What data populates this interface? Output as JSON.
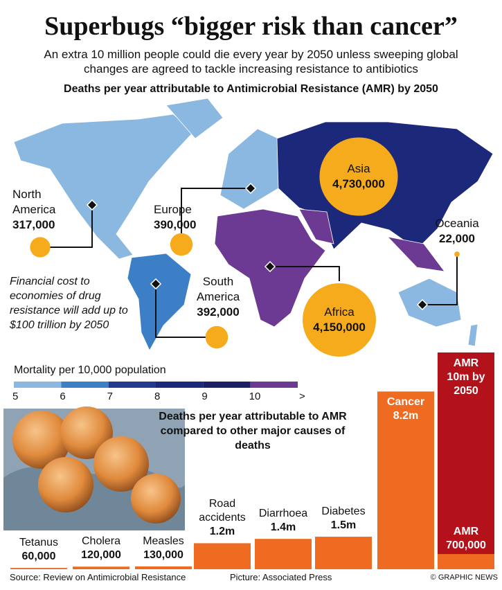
{
  "title": "Superbugs “bigger risk than cancer”",
  "subtitle": "An extra 10 million people could die every year by 2050 unless sweeping global changes are agreed to tackle increasing resistance to antibiotics",
  "map": {
    "title": "Deaths per year attributable to Antimicrobial Resistance (AMR) by 2050",
    "marker_color": "#f6ab1c",
    "regions": [
      {
        "name": "North America",
        "value": 317000,
        "value_label": "317,000",
        "color": "#8ab8e0"
      },
      {
        "name": "Europe",
        "value": 390000,
        "value_label": "390,000",
        "color": "#8ab8e0"
      },
      {
        "name": "Asia",
        "value": 4730000,
        "value_label": "4,730,000",
        "color": "#1c2879"
      },
      {
        "name": "Oceania",
        "value": 22000,
        "value_label": "22,000",
        "color": "#8ab8e0"
      },
      {
        "name": "South America",
        "value": 392000,
        "value_label": "392,000",
        "color": "#3d7fc6"
      },
      {
        "name": "Africa",
        "value": 4150000,
        "value_label": "4,150,000",
        "color": "#6c3a92"
      }
    ]
  },
  "note": "Financial cost to economies of drug resistance will add up to $100 trillion by 2050",
  "mortality_legend": {
    "title": "Mortality per 10,000 population",
    "ticks": [
      5,
      6,
      7,
      8,
      9,
      10
    ],
    "open_end_label": ">",
    "colors": [
      "#8ab8e0",
      "#3d7fc6",
      "#22398f",
      "#1c2879",
      "#1a1f66",
      "#6c3a92"
    ]
  },
  "chart_data": {
    "type": "bar",
    "title": "Deaths per year attributable to AMR compared to other major causes of deaths",
    "categories": [
      "Tetanus",
      "Cholera",
      "Measles",
      "Road accidents",
      "Diarrhoea",
      "Diabetes",
      "Cancer"
    ],
    "values": [
      60000,
      120000,
      130000,
      1200000,
      1400000,
      1500000,
      8200000
    ],
    "value_labels": [
      "60,000",
      "120,000",
      "130,000",
      "1.2m",
      "1.4m",
      "1.5m",
      "8.2m"
    ],
    "color": "#ef6b22",
    "ylim": [
      0,
      10000000
    ],
    "amr": {
      "name": "AMR",
      "color": "#b3121b",
      "by_2050": 10000000,
      "by_2050_label": "10m by 2050",
      "now": 700000,
      "now_label": "700,000"
    }
  },
  "footer": {
    "source": "Source: Review on Antimicrobial Resistance",
    "picture": "Picture: Associated Press",
    "credit": "© GRAPHIC NEWS"
  }
}
